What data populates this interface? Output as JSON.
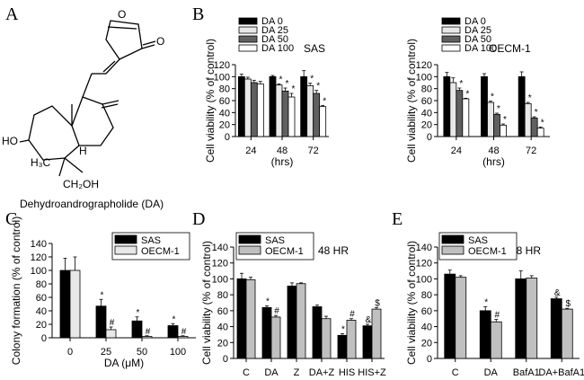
{
  "panel_labels": [
    "A",
    "B",
    "C",
    "D",
    "E"
  ],
  "structure": {
    "name": "Dehydroandrographolide (DA)",
    "atom_labels": {
      "o_ring": "O",
      "o_carbonyl": "O",
      "ho": "HO",
      "h3c": "H₃C",
      "h": "H",
      "ch2oh": "CH₂OH"
    }
  },
  "colors": {
    "black": "#000000",
    "dark_gray": "#606060",
    "light_gray": "#c0c0c0",
    "pale_gray": "#e8e8e8",
    "white": "#ffffff"
  },
  "chart_data": [
    {
      "id": "B1",
      "type": "bar",
      "panel": "B",
      "cell_line": "SAS",
      "categories": [
        "24",
        "48",
        "72"
      ],
      "xlabel": "(hrs)",
      "ylabel": "Cell viability (% of control)",
      "ylim": [
        0,
        120
      ],
      "yticks": [
        0,
        20,
        40,
        60,
        80,
        100,
        120
      ],
      "legend": {
        "position": "top-left",
        "entries": [
          "DA 0",
          "DA 25",
          "DA 50",
          "DA 100"
        ]
      },
      "series": [
        {
          "name": "DA 0",
          "color": "#000000",
          "values": [
            100,
            100,
            100
          ],
          "err": [
            4,
            2,
            10
          ],
          "marks": [
            "",
            "",
            ""
          ]
        },
        {
          "name": "DA 25",
          "color": "#e8e8e8",
          "values": [
            96,
            86,
            85
          ],
          "err": [
            3,
            2,
            4
          ],
          "marks": [
            "",
            "*",
            "*"
          ]
        },
        {
          "name": "DA 50",
          "color": "#606060",
          "values": [
            90,
            76,
            72
          ],
          "err": [
            4,
            5,
            5
          ],
          "marks": [
            "",
            "*",
            "*"
          ]
        },
        {
          "name": "DA 100",
          "color": "#ffffff",
          "values": [
            88,
            66,
            50
          ],
          "err": [
            4,
            6,
            2
          ],
          "marks": [
            "",
            "*",
            "*"
          ]
        }
      ]
    },
    {
      "id": "B2",
      "type": "bar",
      "panel": "B",
      "cell_line": "OECM-1",
      "categories": [
        "24",
        "48",
        "72"
      ],
      "xlabel": "(hrs)",
      "ylabel": "Cell viability (% of control)",
      "ylim": [
        0,
        120
      ],
      "yticks": [
        0,
        20,
        40,
        60,
        80,
        100,
        120
      ],
      "legend": {
        "position": "top-left",
        "entries": [
          "DA 0",
          "DA 25",
          "DA 50",
          "DA 100"
        ]
      },
      "series": [
        {
          "name": "DA 0",
          "color": "#000000",
          "values": [
            100,
            100,
            100
          ],
          "err": [
            7,
            5,
            8
          ],
          "marks": [
            "",
            "",
            ""
          ]
        },
        {
          "name": "DA 25",
          "color": "#e8e8e8",
          "values": [
            90,
            57,
            55
          ],
          "err": [
            8,
            2,
            2
          ],
          "marks": [
            "",
            "*",
            "*"
          ]
        },
        {
          "name": "DA 50",
          "color": "#606060",
          "values": [
            77,
            37,
            31
          ],
          "err": [
            4,
            2,
            2
          ],
          "marks": [
            "*",
            "*",
            "*"
          ]
        },
        {
          "name": "DA 100",
          "color": "#ffffff",
          "values": [
            63,
            19,
            14
          ],
          "err": [
            1,
            2,
            2
          ],
          "marks": [
            "*",
            "*",
            "*"
          ]
        }
      ]
    },
    {
      "id": "C",
      "type": "bar",
      "panel": "C",
      "categories": [
        "0",
        "25",
        "50",
        "100"
      ],
      "xlabel": "DA (μM)",
      "ylabel": "Colony formation (% of control)",
      "ylim": [
        0,
        140
      ],
      "yticks": [
        0,
        20,
        40,
        60,
        80,
        100,
        120,
        140
      ],
      "legend": {
        "position": "top-right",
        "entries": [
          "SAS",
          "OECM-1"
        ]
      },
      "series": [
        {
          "name": "SAS",
          "color": "#000000",
          "values": [
            100,
            47,
            25,
            18
          ],
          "err": [
            18,
            10,
            6,
            3
          ],
          "marks": [
            "",
            "*",
            "*",
            "*"
          ]
        },
        {
          "name": "OECM-1",
          "color": "#e8e8e8",
          "values": [
            100,
            12,
            2,
            2
          ],
          "err": [
            20,
            4,
            1,
            1
          ],
          "marks": [
            "",
            "#",
            "#",
            "#"
          ]
        }
      ]
    },
    {
      "id": "D",
      "type": "bar",
      "panel": "D",
      "annotation": "48 HR",
      "categories": [
        "C",
        "DA",
        "Z",
        "DA+Z",
        "HIS",
        "HIS+Z"
      ],
      "xlabel": "",
      "ylabel": "Cell viability (% of control)",
      "ylim": [
        0,
        140
      ],
      "yticks": [
        0,
        20,
        40,
        60,
        80,
        100,
        120,
        140
      ],
      "legend": {
        "position": "top-left",
        "entries": [
          "SAS",
          "OECM-1"
        ]
      },
      "series": [
        {
          "name": "SAS",
          "color": "#000000",
          "values": [
            100,
            64,
            91,
            65,
            29,
            41
          ],
          "err": [
            7,
            2,
            4,
            2,
            2,
            2
          ],
          "marks": [
            "",
            "*",
            "",
            "",
            "*",
            "&"
          ]
        },
        {
          "name": "OECM-1",
          "color": "#c0c0c0",
          "values": [
            99,
            52,
            94,
            50,
            48,
            62
          ],
          "err": [
            3,
            2,
            1,
            3,
            2,
            2
          ],
          "marks": [
            "",
            "#",
            "",
            "",
            "#",
            "$"
          ]
        }
      ]
    },
    {
      "id": "E",
      "type": "bar",
      "panel": "E",
      "annotation": "48 HR",
      "categories": [
        "C",
        "DA",
        "BafA1",
        "DA+BafA1"
      ],
      "xlabel": "",
      "ylabel": "Cell viability (% of control)",
      "ylim": [
        0,
        140
      ],
      "yticks": [
        0,
        20,
        40,
        60,
        80,
        100,
        120,
        140
      ],
      "legend": {
        "position": "top-left",
        "entries": [
          "SAS",
          "OECM-1"
        ]
      },
      "series": [
        {
          "name": "SAS",
          "color": "#000000",
          "values": [
            106,
            60,
            100,
            75
          ],
          "err": [
            5,
            5,
            10,
            2
          ],
          "marks": [
            "",
            "*",
            "",
            "&"
          ]
        },
        {
          "name": "OECM-1",
          "color": "#c0c0c0",
          "values": [
            102,
            46,
            101,
            62
          ],
          "err": [
            2,
            3,
            3,
            1
          ],
          "marks": [
            "",
            "#",
            "",
            "$"
          ]
        }
      ]
    }
  ]
}
